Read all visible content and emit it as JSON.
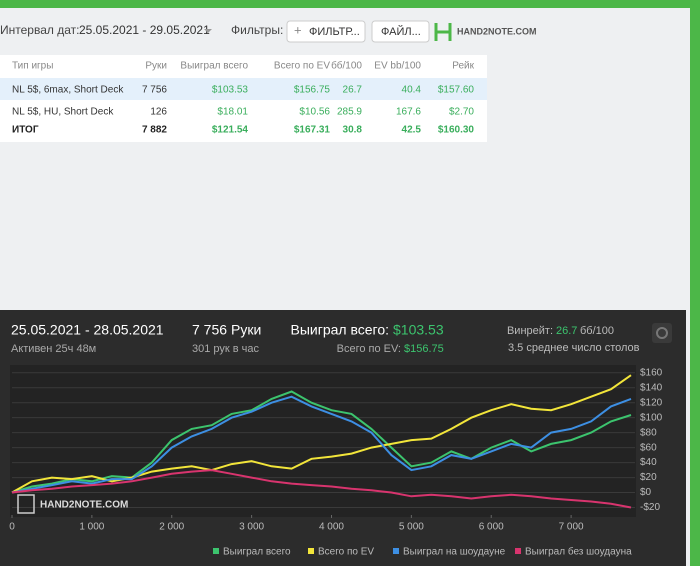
{
  "toolbar": {
    "date_label": "Интервал дат:",
    "date_range": "25.05.2021 - 29.05.2021",
    "filters_label": "Фильтры:",
    "filter_button": "ФИЛЬТР...",
    "file_button": "ФАЙЛ...",
    "logo": "HAND2NOTE.COM"
  },
  "table": {
    "columns": [
      "Тип игры",
      "Руки",
      "Выиграл всего",
      "Всего по EV",
      "бб/100",
      "EV bb/100",
      "Рейк"
    ],
    "rows": [
      [
        "NL 5$, 6max, Short Deck",
        "7 756",
        "$103.53",
        "$156.75",
        "26.7",
        "40.4",
        "$157.60"
      ],
      [
        "NL 5$, HU, Short Deck",
        "126",
        "$18.01",
        "$10.56",
        "285.9",
        "167.6",
        "$2.70"
      ]
    ],
    "total": [
      "ИТОГ",
      "7 882",
      "$121.54",
      "$167.31",
      "30.8",
      "42.5",
      "$160.30"
    ]
  },
  "summary": {
    "period": "25.05.2021 - 28.05.2021",
    "active": "Активен 25ч 48м",
    "hands": "7 756",
    "hands_label": "Руки",
    "hands_per_hour": "301 рук в час",
    "won_label": "Выиграл всего:",
    "won": "$103.53",
    "ev_label": "Всего по EV:",
    "ev": "$156.75",
    "winrate_label": "Винрейт:",
    "winrate": "26.7",
    "winrate_unit": "бб/100",
    "tables": "3.5 среднее число столов",
    "watermark": "HAND2NOTE.COM"
  },
  "chart_data": {
    "type": "line",
    "x": [
      0,
      250,
      500,
      750,
      1000,
      1250,
      1500,
      1750,
      2000,
      2250,
      2500,
      2750,
      3000,
      3250,
      3500,
      3750,
      4000,
      4250,
      4500,
      4750,
      5000,
      5250,
      5500,
      5750,
      6000,
      6250,
      6500,
      6750,
      7000,
      7250,
      7500,
      7750
    ],
    "series": [
      {
        "name": "Выиграл всего",
        "color": "#3cc46e",
        "values": [
          0,
          8,
          12,
          18,
          15,
          22,
          20,
          40,
          70,
          85,
          90,
          105,
          110,
          125,
          135,
          120,
          110,
          105,
          85,
          60,
          35,
          40,
          55,
          45,
          60,
          70,
          55,
          65,
          70,
          80,
          95,
          103.53
        ]
      },
      {
        "name": "Всего по EV",
        "color": "#f2e53a",
        "values": [
          0,
          15,
          20,
          18,
          22,
          15,
          20,
          28,
          32,
          35,
          30,
          38,
          42,
          35,
          32,
          45,
          48,
          52,
          60,
          65,
          70,
          72,
          85,
          100,
          110,
          118,
          112,
          110,
          118,
          128,
          138,
          156.75
        ]
      },
      {
        "name": "Выиграл на шоудауне",
        "color": "#3d8fe3",
        "values": [
          0,
          5,
          10,
          15,
          12,
          18,
          18,
          35,
          60,
          75,
          85,
          100,
          108,
          120,
          128,
          115,
          105,
          95,
          80,
          50,
          30,
          35,
          50,
          45,
          55,
          65,
          60,
          80,
          85,
          95,
          115,
          125
        ]
      },
      {
        "name": "Выиграл без шоудауна",
        "color": "#d8346e",
        "values": [
          0,
          3,
          5,
          8,
          10,
          12,
          15,
          20,
          25,
          28,
          30,
          25,
          20,
          15,
          12,
          10,
          8,
          5,
          3,
          0,
          -5,
          -3,
          -5,
          -8,
          -5,
          -3,
          -5,
          -8,
          -10,
          -12,
          -15,
          -20
        ]
      }
    ],
    "xlim": [
      0,
      7800
    ],
    "ylim": [
      -30,
      165
    ],
    "xticks": [
      0,
      {
        "value": 1000,
        "label": "1 000"
      },
      {
        "value": 2000,
        "label": "2 000"
      },
      {
        "value": 3000,
        "label": "3 000"
      },
      {
        "value": 4000,
        "label": "4 000"
      },
      {
        "value": 5000,
        "label": "5 000"
      },
      {
        "value": 6000,
        "label": "6 000"
      },
      {
        "value": 7000,
        "label": "7 000"
      }
    ],
    "yticks": [
      {
        "value": -20,
        "label": "-$20"
      },
      {
        "value": 0,
        "label": "$0"
      },
      {
        "value": 20,
        "label": "$20"
      },
      {
        "value": 40,
        "label": "$40"
      },
      {
        "value": 60,
        "label": "$60"
      },
      {
        "value": 80,
        "label": "$80"
      },
      {
        "value": 100,
        "label": "$100"
      },
      {
        "value": 120,
        "label": "$120"
      },
      {
        "value": 140,
        "label": "$140"
      },
      {
        "value": 160,
        "label": "$160"
      }
    ],
    "grid": true
  }
}
